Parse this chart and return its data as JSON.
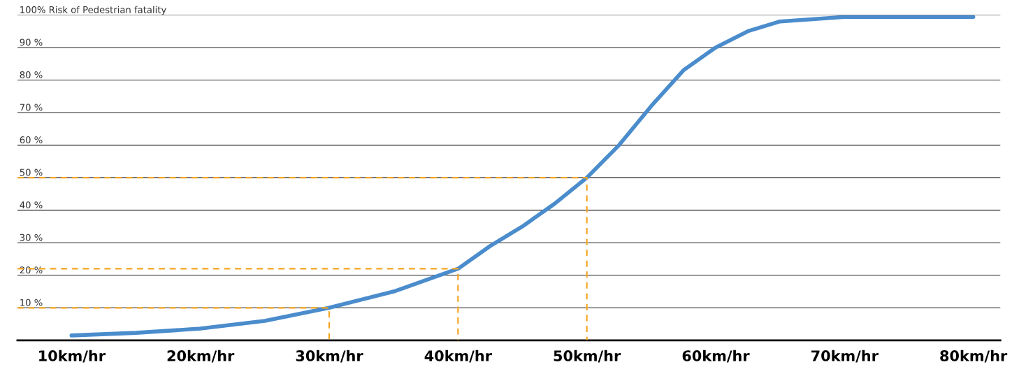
{
  "chart_data": {
    "type": "line",
    "xlim": [
      5.8,
      82.1
    ],
    "ylim": [
      0,
      100
    ],
    "xticks": [
      {
        "value": 10,
        "label": "10km/hr"
      },
      {
        "value": 20,
        "label": "20km/hr"
      },
      {
        "value": 30,
        "label": "30km/hr"
      },
      {
        "value": 40,
        "label": "40km/hr"
      },
      {
        "value": 50,
        "label": "50km/hr"
      },
      {
        "value": 60,
        "label": "60km/hr"
      },
      {
        "value": 70,
        "label": "70km/hr"
      },
      {
        "value": 80,
        "label": "80km/hr"
      }
    ],
    "yticks": [
      {
        "value": 10,
        "label": "10 %"
      },
      {
        "value": 20,
        "label": "20 %"
      },
      {
        "value": 30,
        "label": "30 %"
      },
      {
        "value": 40,
        "label": "40 %"
      },
      {
        "value": 50,
        "label": "50 %"
      },
      {
        "value": 60,
        "label": "60 %"
      },
      {
        "value": 70,
        "label": "70 %"
      },
      {
        "value": 80,
        "label": "80 %"
      },
      {
        "value": 90,
        "label": "90 %"
      },
      {
        "value": 100,
        "label": "100% Risk of Pedestrian fatality"
      }
    ],
    "grid": "y",
    "legend": false,
    "marker": "none",
    "series": [
      {
        "color": "#4a8ccc",
        "line_style": "solid",
        "x": [
          10,
          15,
          20,
          25,
          30,
          35,
          40,
          42.5,
          45,
          47.5,
          50,
          52.5,
          55,
          57.5,
          60,
          62.5,
          65,
          70,
          80
        ],
        "values": [
          1.5,
          2.3,
          3.6,
          6,
          10,
          15,
          22,
          29,
          35,
          42,
          50,
          60,
          72,
          83,
          90,
          95,
          98,
          99.4,
          99.4
        ]
      },
      {
        "color": "#f5a623",
        "line_style": "dashed",
        "x": [
          5.8,
          30,
          30
        ],
        "values": [
          10,
          10,
          0
        ]
      },
      {
        "color": "#f5a623",
        "line_style": "dashed",
        "x": [
          5.8,
          40,
          40
        ],
        "values": [
          22,
          22,
          0
        ]
      },
      {
        "color": "#f5a623",
        "line_style": "dashed",
        "x": [
          5.8,
          50,
          50
        ],
        "values": [
          50,
          50,
          0
        ]
      }
    ]
  }
}
